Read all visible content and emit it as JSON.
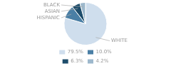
{
  "chart_data": {
    "type": "pie",
    "categories": [
      "WHITE",
      "HISPANIC",
      "ASIAN",
      "BLACK"
    ],
    "values": [
      79.5,
      10.0,
      6.3,
      4.2
    ],
    "value_labels": [
      "79.5%",
      "10.0%",
      "6.3%",
      "4.2%"
    ],
    "colors": [
      "#cfdeed",
      "#4a7fa5",
      "#1e4d6b",
      "#9db8cc"
    ],
    "legend": "bottom"
  }
}
